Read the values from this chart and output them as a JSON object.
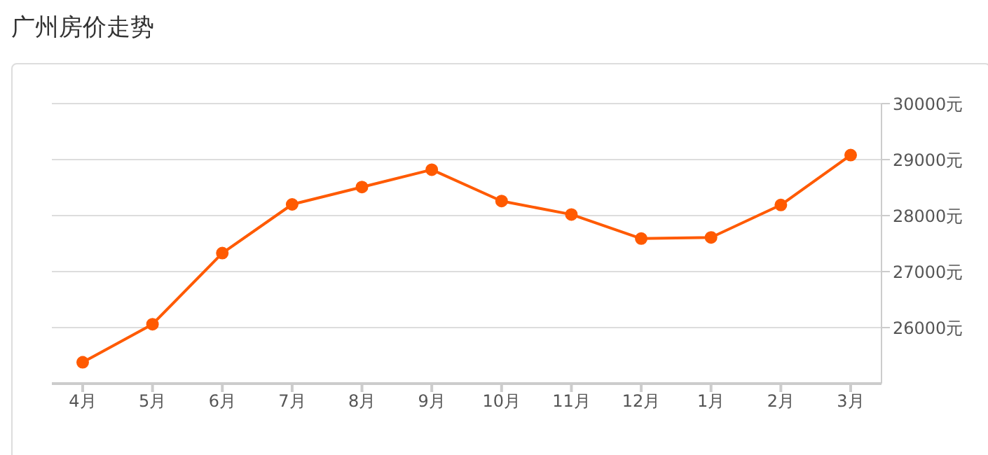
{
  "chart_data": {
    "type": "line",
    "title": "广州房价走势",
    "categories": [
      "4月",
      "5月",
      "6月",
      "7月",
      "8月",
      "9月",
      "10月",
      "11月",
      "12月",
      "1月",
      "2月",
      "3月"
    ],
    "series": [
      {
        "color": "#ff5a00",
        "values": [
          25380,
          26060,
          27330,
          28200,
          28510,
          28820,
          28260,
          28020,
          27590,
          27610,
          28190,
          29080
        ]
      }
    ],
    "ylim": [
      25000,
      30000
    ],
    "yticks": [
      {
        "value": 26000,
        "label": "26000元"
      },
      {
        "value": 27000,
        "label": "27000元"
      },
      {
        "value": 28000,
        "label": "28000元"
      },
      {
        "value": 29000,
        "label": "29000元"
      },
      {
        "value": 30000,
        "label": "30000元"
      }
    ],
    "grid": "y",
    "marker": "circle",
    "line_style": "solid"
  }
}
